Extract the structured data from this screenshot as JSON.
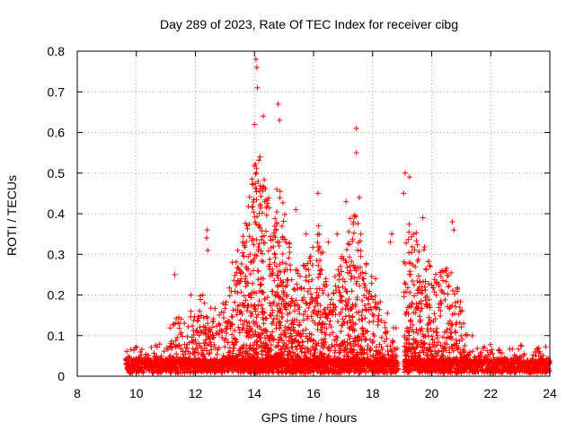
{
  "chart_data": {
    "type": "scatter",
    "title": "Day 289 of 2023, Rate Of TEC Index for receiver cibg",
    "xlabel": "GPS time / hours",
    "ylabel": "ROTI / TECUs",
    "xlim": [
      8,
      24
    ],
    "ylim": [
      0,
      0.8
    ],
    "grid": true,
    "marker": "+",
    "marker_color": "#ff0000",
    "x_ticks": [
      "8",
      "10",
      "12",
      "14",
      "16",
      "18",
      "20",
      "22",
      "24"
    ],
    "y_ticks": [
      "0",
      "0.1",
      "0.2",
      "0.3",
      "0.4",
      "0.5",
      "0.6",
      "0.7",
      "0.8"
    ],
    "x_tick_values": [
      8,
      10,
      12,
      14,
      16,
      18,
      20,
      22,
      24
    ],
    "y_tick_values": [
      0,
      0.1,
      0.2,
      0.3,
      0.4,
      0.5,
      0.6,
      0.7,
      0.8
    ],
    "data_span_hours": [
      9.65,
      24.0
    ],
    "gap_hours": [
      18.85,
      19.05
    ],
    "notable_points": [
      {
        "x": 14.05,
        "y": 0.78
      },
      {
        "x": 14.08,
        "y": 0.76
      },
      {
        "x": 14.1,
        "y": 0.71
      },
      {
        "x": 14.8,
        "y": 0.67
      },
      {
        "x": 14.85,
        "y": 0.63
      },
      {
        "x": 14.3,
        "y": 0.64
      },
      {
        "x": 14.0,
        "y": 0.62
      },
      {
        "x": 17.45,
        "y": 0.61
      },
      {
        "x": 17.45,
        "y": 0.55
      },
      {
        "x": 19.1,
        "y": 0.5
      },
      {
        "x": 19.25,
        "y": 0.49
      },
      {
        "x": 19.05,
        "y": 0.45
      },
      {
        "x": 16.15,
        "y": 0.45
      },
      {
        "x": 17.1,
        "y": 0.43
      },
      {
        "x": 17.55,
        "y": 0.44
      },
      {
        "x": 19.7,
        "y": 0.39
      },
      {
        "x": 20.7,
        "y": 0.38
      },
      {
        "x": 20.75,
        "y": 0.36
      },
      {
        "x": 12.4,
        "y": 0.36
      },
      {
        "x": 12.38,
        "y": 0.34
      },
      {
        "x": 12.42,
        "y": 0.31
      },
      {
        "x": 11.3,
        "y": 0.25
      },
      {
        "x": 13.6,
        "y": 0.33
      },
      {
        "x": 15.4,
        "y": 0.41
      },
      {
        "x": 16.8,
        "y": 0.35
      },
      {
        "x": 18.65,
        "y": 0.35
      },
      {
        "x": 18.6,
        "y": 0.33
      },
      {
        "x": 20.35,
        "y": 0.26
      },
      {
        "x": 18.1,
        "y": 0.24
      },
      {
        "x": 23.5,
        "y": 0.06
      },
      {
        "x": 11.85,
        "y": 0.2
      },
      {
        "x": 12.25,
        "y": 0.2
      },
      {
        "x": 13.25,
        "y": 0.28
      },
      {
        "x": 15.75,
        "y": 0.35
      },
      {
        "x": 16.5,
        "y": 0.33
      },
      {
        "x": 17.7,
        "y": 0.24
      },
      {
        "x": 19.95,
        "y": 0.27
      },
      {
        "x": 20.95,
        "y": 0.17
      },
      {
        "x": 21.2,
        "y": 0.1
      },
      {
        "x": 10.85,
        "y": 0.05
      }
    ],
    "activity_profile": [
      {
        "x": 9.65,
        "level": 0.05
      },
      {
        "x": 10.5,
        "level": 0.045
      },
      {
        "x": 11.0,
        "level": 0.06
      },
      {
        "x": 11.3,
        "level": 0.13
      },
      {
        "x": 11.7,
        "level": 0.1
      },
      {
        "x": 12.0,
        "level": 0.16
      },
      {
        "x": 12.4,
        "level": 0.18
      },
      {
        "x": 12.8,
        "level": 0.12
      },
      {
        "x": 13.3,
        "level": 0.25
      },
      {
        "x": 13.7,
        "level": 0.35
      },
      {
        "x": 14.1,
        "level": 0.55
      },
      {
        "x": 14.5,
        "level": 0.4
      },
      {
        "x": 14.9,
        "level": 0.45
      },
      {
        "x": 15.3,
        "level": 0.25
      },
      {
        "x": 15.8,
        "level": 0.25
      },
      {
        "x": 16.2,
        "level": 0.35
      },
      {
        "x": 16.6,
        "level": 0.18
      },
      {
        "x": 17.0,
        "level": 0.3
      },
      {
        "x": 17.4,
        "level": 0.4
      },
      {
        "x": 17.8,
        "level": 0.25
      },
      {
        "x": 18.3,
        "level": 0.15
      },
      {
        "x": 18.8,
        "level": 0.1
      },
      {
        "x": 19.2,
        "level": 0.35
      },
      {
        "x": 19.7,
        "level": 0.3
      },
      {
        "x": 20.2,
        "level": 0.22
      },
      {
        "x": 20.7,
        "level": 0.25
      },
      {
        "x": 21.1,
        "level": 0.12
      },
      {
        "x": 21.5,
        "level": 0.05
      },
      {
        "x": 24.0,
        "level": 0.045
      }
    ]
  }
}
